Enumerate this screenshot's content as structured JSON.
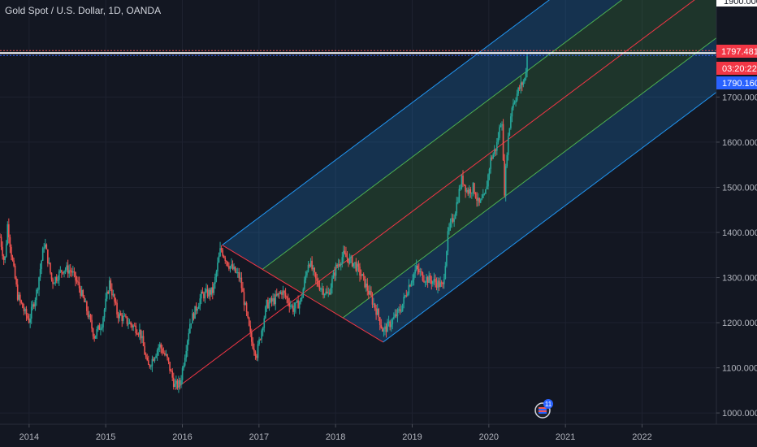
{
  "header": {
    "title": "Gold Spot / U.S. Dollar, 1D, OANDA"
  },
  "price_axis": {
    "top_partial_label": "1900.000",
    "last_price_label": "1797.481",
    "countdown_label": "03:20:22",
    "secondary_price_label": "1790.160",
    "last_price_color": "#f23645",
    "secondary_price_color": "#2962ff"
  },
  "events": {
    "flag_count": "11"
  },
  "colors": {
    "background": "#131722",
    "up_candle": "#26a69a",
    "down_candle": "#ef5350",
    "median_line": "#f23645",
    "outer_channel": "#2196f3",
    "inner_channel": "#4caf50"
  },
  "chart_data": {
    "type": "candlestick",
    "title": "Gold Spot / U.S. Dollar, 1D, OANDA",
    "xlabel": "",
    "ylabel": "",
    "x_ticks": [
      "2014",
      "2015",
      "2016",
      "2017",
      "2018",
      "2019",
      "2020",
      "2021",
      "2022"
    ],
    "y_ticks": [
      "1000.000",
      "1100.000",
      "1200.000",
      "1300.000",
      "1400.000",
      "1500.000",
      "1600.000",
      "1700.000"
    ],
    "ylim": [
      975,
      1915
    ],
    "xlim": [
      2013.62,
      2022.97
    ],
    "grid": true,
    "price_series": [
      [
        2013.62,
        1390
      ],
      [
        2013.68,
        1330
      ],
      [
        2013.72,
        1420
      ],
      [
        2013.77,
        1350
      ],
      [
        2013.85,
        1260
      ],
      [
        2013.95,
        1220
      ],
      [
        2014.0,
        1205
      ],
      [
        2014.1,
        1270
      ],
      [
        2014.2,
        1380
      ],
      [
        2014.3,
        1290
      ],
      [
        2014.45,
        1320
      ],
      [
        2014.55,
        1315
      ],
      [
        2014.65,
        1280
      ],
      [
        2014.75,
        1230
      ],
      [
        2014.85,
        1170
      ],
      [
        2014.95,
        1200
      ],
      [
        2015.05,
        1290
      ],
      [
        2015.15,
        1220
      ],
      [
        2015.3,
        1200
      ],
      [
        2015.45,
        1180
      ],
      [
        2015.55,
        1100
      ],
      [
        2015.7,
        1150
      ],
      [
        2015.8,
        1120
      ],
      [
        2015.9,
        1060
      ],
      [
        2015.97,
        1065
      ],
      [
        2016.1,
        1200
      ],
      [
        2016.25,
        1260
      ],
      [
        2016.4,
        1270
      ],
      [
        2016.5,
        1365
      ],
      [
        2016.6,
        1330
      ],
      [
        2016.75,
        1300
      ],
      [
        2016.9,
        1160
      ],
      [
        2016.97,
        1130
      ],
      [
        2017.1,
        1240
      ],
      [
        2017.2,
        1250
      ],
      [
        2017.3,
        1270
      ],
      [
        2017.45,
        1230
      ],
      [
        2017.55,
        1250
      ],
      [
        2017.65,
        1340
      ],
      [
        2017.75,
        1290
      ],
      [
        2017.9,
        1260
      ],
      [
        2018.0,
        1320
      ],
      [
        2018.1,
        1350
      ],
      [
        2018.25,
        1330
      ],
      [
        2018.35,
        1300
      ],
      [
        2018.45,
        1260
      ],
      [
        2018.55,
        1220
      ],
      [
        2018.62,
        1180
      ],
      [
        2018.72,
        1200
      ],
      [
        2018.85,
        1230
      ],
      [
        2018.95,
        1280
      ],
      [
        2019.05,
        1320
      ],
      [
        2019.15,
        1300
      ],
      [
        2019.3,
        1290
      ],
      [
        2019.4,
        1280
      ],
      [
        2019.47,
        1400
      ],
      [
        2019.55,
        1440
      ],
      [
        2019.65,
        1520
      ],
      [
        2019.72,
        1490
      ],
      [
        2019.8,
        1500
      ],
      [
        2019.87,
        1460
      ],
      [
        2019.95,
        1480
      ],
      [
        2020.02,
        1560
      ],
      [
        2020.1,
        1590
      ],
      [
        2020.17,
        1660
      ],
      [
        2020.2,
        1480
      ],
      [
        2020.24,
        1590
      ],
      [
        2020.3,
        1680
      ],
      [
        2020.4,
        1720
      ],
      [
        2020.47,
        1740
      ],
      [
        2020.5,
        1790
      ]
    ],
    "last_price": 1797.481,
    "pitchfork": {
      "pivot_a": [
        2015.9,
        1052
      ],
      "pivot_b": [
        2016.52,
        1372
      ],
      "pivot_c": [
        2018.62,
        1157
      ],
      "median_end": [
        2022.6,
        1915
      ],
      "inner_levels": [
        0.5
      ],
      "outer_levels": [
        1.0
      ]
    }
  }
}
